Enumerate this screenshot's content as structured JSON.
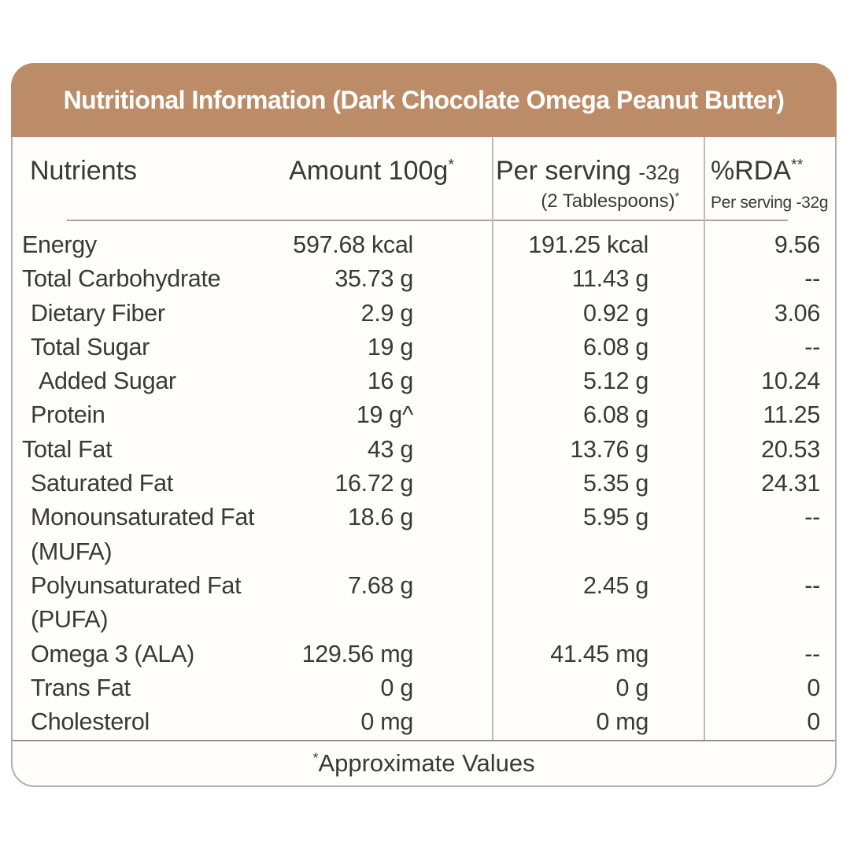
{
  "title": "Nutritional Information (Dark Chocolate Omega Peanut Butter)",
  "table": {
    "columns": {
      "nutrients": "Nutrients",
      "amount_main": "Amount 100g",
      "amount_sup": "*",
      "serving_main": "Per serving",
      "serving_sub": "-32g",
      "serving_line2": "(2 Tablespoons)",
      "serving_line2_sup": "*",
      "rda_main": "%RDA",
      "rda_sup": "**",
      "rda_line2": "Per serving -32g"
    },
    "rows": [
      {
        "nutrient": "Energy",
        "amount": "597.68 kcal",
        "per_serving": "191.25 kcal",
        "rda": "9.56",
        "indent": 0
      },
      {
        "nutrient": "Total Carbohydrate",
        "amount": "35.73 g",
        "per_serving": "11.43 g",
        "rda": "--",
        "indent": 0
      },
      {
        "nutrient": "Dietary Fiber",
        "amount": "2.9 g",
        "per_serving": "0.92 g",
        "rda": "3.06",
        "indent": 1
      },
      {
        "nutrient": "Total Sugar",
        "amount": "19 g",
        "per_serving": "6.08 g",
        "rda": "--",
        "indent": 1
      },
      {
        "nutrient": "Added Sugar",
        "amount": "16 g",
        "per_serving": "5.12 g",
        "rda": "10.24",
        "indent": 2
      },
      {
        "nutrient": "Protein",
        "amount": "19 g^",
        "per_serving": "6.08 g",
        "rda": "11.25",
        "indent": 1
      },
      {
        "nutrient": "Total Fat",
        "amount": "43 g",
        "per_serving": "13.76 g",
        "rda": "20.53",
        "indent": 0
      },
      {
        "nutrient": "Saturated Fat",
        "amount": "16.72 g",
        "per_serving": "5.35 g",
        "rda": "24.31",
        "indent": 1
      },
      {
        "nutrient": "Monounsaturated Fat",
        "nutrient2": "(MUFA)",
        "amount": "18.6 g",
        "per_serving": "5.95 g",
        "rda": "--",
        "indent": 1
      },
      {
        "nutrient": "Polyunsaturated Fat",
        "nutrient2": "(PUFA)",
        "amount": "7.68 g",
        "per_serving": "2.45 g",
        "rda": "--",
        "indent": 1
      },
      {
        "nutrient": "Omega 3 (ALA)",
        "amount": "129.56 mg",
        "per_serving": "41.45 mg",
        "rda": "--",
        "indent": 1
      },
      {
        "nutrient": "Trans Fat",
        "amount": "0 g",
        "per_serving": "0 g",
        "rda": "0",
        "indent": 1
      },
      {
        "nutrient": "Cholesterol",
        "amount": "0 mg",
        "per_serving": "0 mg",
        "rda": "0",
        "indent": 1
      }
    ]
  },
  "footer": {
    "sup": "*",
    "text": "Approximate Values"
  },
  "colors": {
    "header_bg": "#bc8c68",
    "header_text": "#ffffff",
    "body_text": "#3c3835",
    "underline": "#b19f90",
    "divider": "#c3b9ae",
    "footer_line": "#96908b",
    "card_border": "#b6afa9"
  }
}
